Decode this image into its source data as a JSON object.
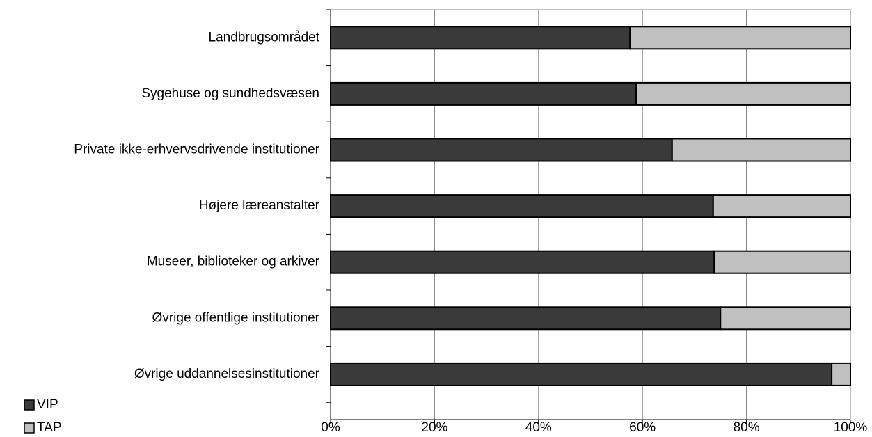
{
  "chart_data": {
    "type": "stacked_barh",
    "categories": [
      "Landbrugsområdet",
      "Sygehuse og sundhedsvæsen",
      "Private ikke-erhvervsdrivende institutioner",
      "Højere læreanstalter",
      "Museer, biblioteker og arkiver",
      "Øvrige offentlige institutioner",
      "Øvrige uddannelsesinstitutioner"
    ],
    "series": [
      {
        "name": "VIP",
        "color": "#3a3a3a",
        "values": [
          57.6,
          58.8,
          65.7,
          73.6,
          73.8,
          75.0,
          96.4
        ]
      },
      {
        "name": "TAP",
        "color": "#c0c0c0",
        "values": [
          42.4,
          41.2,
          34.3,
          26.4,
          26.2,
          25.0,
          3.6
        ]
      }
    ],
    "xlim": [
      0,
      100
    ],
    "xticks": [
      {
        "value": 0,
        "label": "0%"
      },
      {
        "value": 20,
        "label": "20%"
      },
      {
        "value": 40,
        "label": "40%"
      },
      {
        "value": 60,
        "label": "60%"
      },
      {
        "value": 80,
        "label": "80%"
      },
      {
        "value": 100,
        "label": "100%"
      }
    ],
    "grid": true,
    "legend": "bottom-left"
  }
}
